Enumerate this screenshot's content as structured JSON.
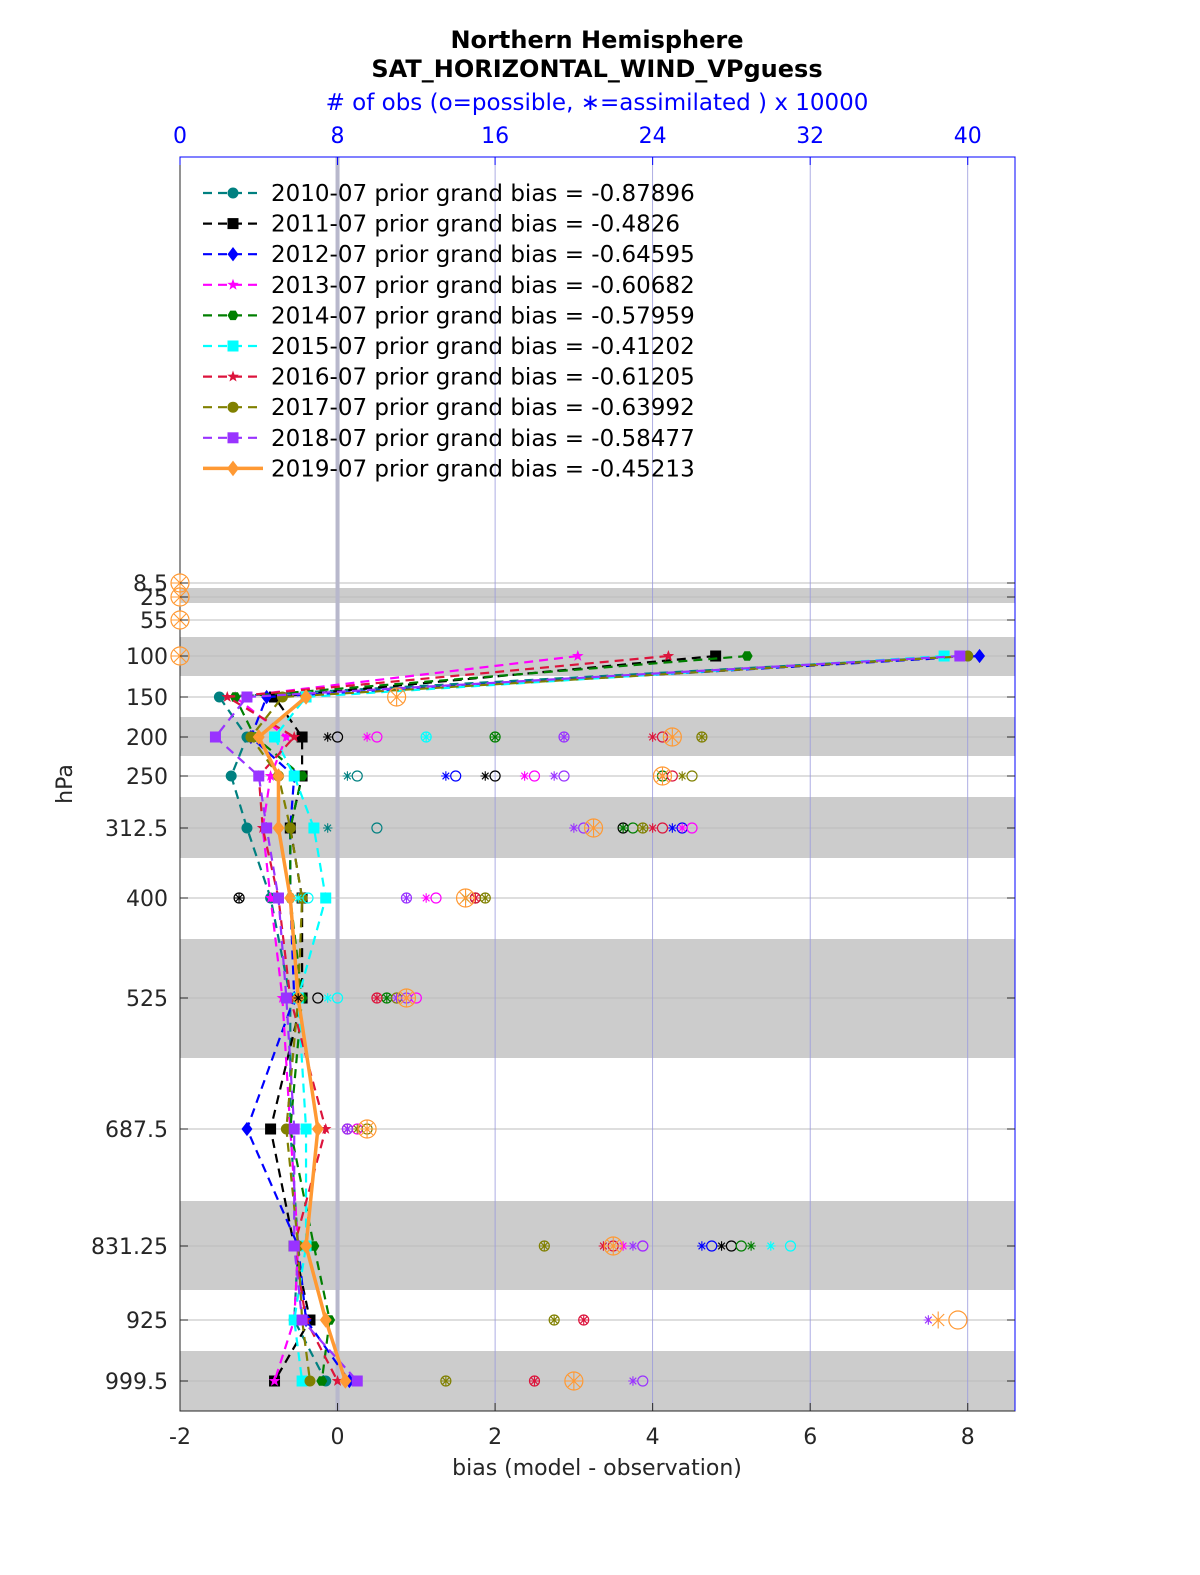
{
  "chart_data": {
    "type": "line",
    "title": "Northern Hemisphere",
    "subtitle": "SAT_HORIZONTAL_WIND_VPguess",
    "top_axis_label": "# of obs (o=possible, ∗=assimilated ) x 10000",
    "xlabel": "bias (model - observation)",
    "ylabel": "hPa",
    "xlim": [
      -2,
      8.6
    ],
    "x_ticks": [
      "-2",
      "0",
      "2",
      "4",
      "6",
      "8"
    ],
    "top_xlim": [
      0,
      42.4
    ],
    "top_ticks": [
      "0",
      "8",
      "16",
      "24",
      "32",
      "40"
    ],
    "y_reversed": true,
    "levels": [
      8.5,
      25,
      55,
      100,
      150,
      200,
      250,
      312.5,
      400,
      525,
      687.5,
      831.25,
      925,
      999.5
    ],
    "level_labels": [
      "8.5",
      "25",
      "55",
      "100",
      "150",
      "200",
      "250",
      "312.5",
      "400",
      "525",
      "687.5",
      "831.25",
      "925",
      "999.5"
    ],
    "grid": true,
    "legend_position": "top-left",
    "series": [
      {
        "name": "2010-07 prior grand bias = -0.87896",
        "color": "#008080",
        "marker": "circle",
        "style": "dashed",
        "bias": [
          null,
          null,
          null,
          8.0,
          -1.5,
          -1.15,
          -1.35,
          -1.15,
          -0.85,
          -0.6,
          -0.6,
          -0.5,
          -0.55,
          -0.15
        ],
        "obs_possible": [
          null,
          null,
          null,
          null,
          null,
          null,
          9,
          10,
          null,
          null,
          null,
          null,
          null,
          null
        ],
        "obs_assimilated": [
          null,
          null,
          null,
          null,
          null,
          null,
          8.5,
          7.5,
          null,
          null,
          null,
          null,
          null,
          null
        ]
      },
      {
        "name": "2011-07 prior grand bias = -0.4826",
        "color": "#000000",
        "marker": "square",
        "style": "dashed",
        "bias": [
          null,
          null,
          null,
          4.8,
          -0.8,
          -0.45,
          -0.45,
          -0.6,
          -0.45,
          -0.45,
          -0.85,
          -0.55,
          -0.35,
          -0.8
        ],
        "obs_possible": [
          null,
          null,
          null,
          null,
          null,
          8,
          16,
          22.5,
          3,
          7,
          null,
          28,
          null,
          null
        ],
        "obs_assimilated": [
          null,
          null,
          null,
          null,
          null,
          7.5,
          15.5,
          22.5,
          3,
          6,
          null,
          27.5,
          null,
          null
        ]
      },
      {
        "name": "2012-07 prior grand bias = -0.64595",
        "color": "#0000ff",
        "marker": "diamond",
        "style": "dashed",
        "bias": [
          null,
          null,
          null,
          8.15,
          -0.9,
          -1.1,
          -0.55,
          -0.6,
          -0.6,
          -0.55,
          -1.15,
          -0.5,
          -0.4,
          0.15
        ],
        "obs_possible": [
          null,
          null,
          null,
          null,
          null,
          null,
          14,
          25.5,
          null,
          null,
          null,
          27,
          null,
          null
        ],
        "obs_assimilated": [
          null,
          null,
          null,
          null,
          null,
          null,
          13.5,
          25,
          null,
          null,
          null,
          26.5,
          null,
          null
        ]
      },
      {
        "name": "2013-07 prior grand bias = -0.60682",
        "color": "#ff00ff",
        "marker": "star",
        "style": "dashed",
        "bias": [
          null,
          null,
          null,
          3.05,
          -1.3,
          -0.65,
          -0.85,
          -0.95,
          -0.85,
          -0.7,
          -0.6,
          -0.5,
          -0.55,
          -0.8
        ],
        "obs_possible": [
          null,
          null,
          null,
          null,
          null,
          10,
          18,
          26,
          13,
          12,
          9,
          23.5,
          null,
          null
        ],
        "obs_assimilated": [
          null,
          null,
          null,
          null,
          null,
          9.5,
          17.5,
          25.5,
          12.5,
          11.5,
          8.5,
          22.5,
          null,
          null
        ]
      },
      {
        "name": "2014-07 prior grand bias = -0.57959",
        "color": "#007f00",
        "marker": "hexagon",
        "style": "dashed",
        "bias": [
          null,
          null,
          null,
          5.2,
          -1.3,
          -1.05,
          -0.45,
          -0.6,
          -0.6,
          -0.45,
          -0.6,
          -0.3,
          -0.1,
          -0.2
        ],
        "obs_possible": [
          null,
          null,
          null,
          null,
          null,
          16,
          24.5,
          23,
          15,
          10.5,
          null,
          28.5,
          null,
          null
        ],
        "obs_assimilated": [
          null,
          null,
          null,
          null,
          null,
          16,
          24.5,
          22.5,
          14.5,
          10.5,
          null,
          29,
          null,
          null
        ]
      },
      {
        "name": "2015-07 prior grand bias = -0.41202",
        "color": "#00ffff",
        "marker": "square",
        "style": "dashed",
        "bias": [
          null,
          null,
          null,
          7.7,
          -0.4,
          -0.8,
          -0.55,
          -0.3,
          -0.15,
          -0.5,
          -0.4,
          -0.4,
          -0.55,
          -0.45
        ],
        "obs_possible": [
          null,
          null,
          null,
          null,
          null,
          12.5,
          null,
          null,
          6.5,
          8,
          null,
          31,
          null,
          null
        ],
        "obs_assimilated": [
          null,
          null,
          null,
          null,
          null,
          12.5,
          null,
          null,
          6,
          7.5,
          null,
          30,
          null,
          null
        ]
      },
      {
        "name": "2016-07 prior grand bias = -0.61205",
        "color": "#dc143c",
        "marker": "star",
        "style": "dashed",
        "bias": [
          null,
          null,
          null,
          4.2,
          -1.4,
          -0.55,
          -1.0,
          -0.95,
          -0.75,
          -0.6,
          -0.15,
          -0.55,
          -0.4,
          0.0
        ],
        "obs_possible": [
          null,
          null,
          null,
          null,
          null,
          24.5,
          25,
          24.5,
          15,
          10,
          8.5,
          22,
          20.5,
          18
        ],
        "obs_assimilated": [
          null,
          null,
          null,
          null,
          null,
          24,
          24.5,
          24,
          15,
          10,
          8.5,
          21.5,
          20.5,
          18
        ]
      },
      {
        "name": "2017-07 prior grand bias = -0.63992",
        "color": "#808000",
        "marker": "circle",
        "style": "dashed",
        "bias": [
          null,
          null,
          null,
          8.0,
          -0.7,
          -1.1,
          -0.75,
          -0.6,
          -0.45,
          -0.5,
          -0.65,
          -0.5,
          -0.45,
          -0.35
        ],
        "obs_possible": [
          null,
          null,
          null,
          null,
          null,
          26.5,
          26,
          23.5,
          15.5,
          11,
          9.5,
          18.5,
          19,
          13.5
        ],
        "obs_assimilated": [
          null,
          null,
          null,
          null,
          null,
          26.5,
          25.5,
          23.5,
          15.5,
          11,
          9,
          18.5,
          19,
          13.5
        ]
      },
      {
        "name": "2018-07 prior grand bias = -0.58477",
        "color": "#9933ff",
        "marker": "square",
        "style": "dashed",
        "bias": [
          null,
          null,
          null,
          7.9,
          -1.15,
          -1.55,
          -1.0,
          -0.9,
          -0.75,
          -0.65,
          -0.55,
          -0.55,
          -0.45,
          0.25
        ],
        "obs_possible": [
          null,
          null,
          null,
          null,
          null,
          19.5,
          19.5,
          20.5,
          11.5,
          11.5,
          8.5,
          23.5,
          null,
          23.5
        ],
        "obs_assimilated": [
          null,
          null,
          null,
          null,
          null,
          19.5,
          19,
          20,
          11.5,
          11,
          8.5,
          23,
          38,
          23
        ]
      },
      {
        "name": "2019-07 prior grand bias = -0.45213",
        "color": "#ff9933",
        "marker": "diamond",
        "style": "solid",
        "bias": [
          null,
          null,
          null,
          null,
          -0.4,
          -1.0,
          -0.75,
          -0.75,
          -0.6,
          -0.5,
          -0.25,
          -0.4,
          -0.15,
          0.1
        ],
        "obs_possible": [
          0,
          0,
          0,
          0,
          11,
          25,
          24.5,
          21,
          14.5,
          11.5,
          9.5,
          22,
          39.5,
          20
        ],
        "obs_assimilated": [
          0,
          0,
          0,
          0,
          11,
          25,
          24.5,
          21,
          14.5,
          11.5,
          9.5,
          22,
          38.5,
          20
        ]
      }
    ]
  }
}
